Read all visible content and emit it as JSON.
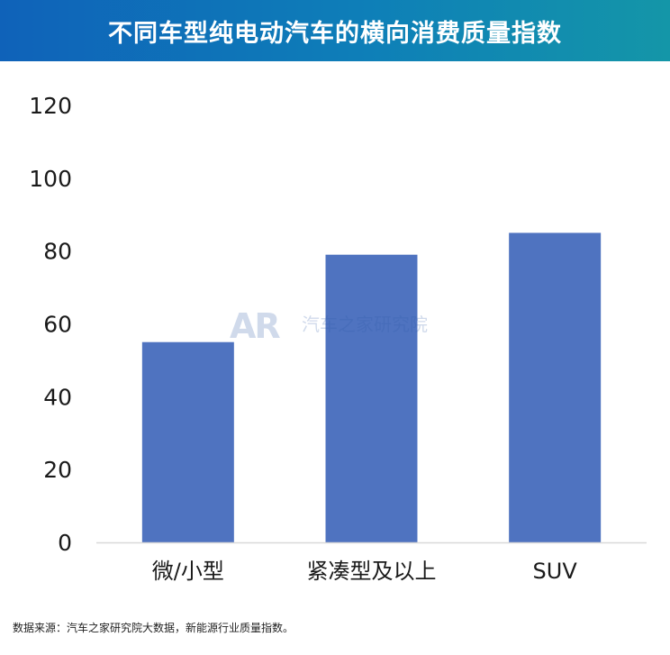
{
  "header": {
    "title": "不同车型纯电动汽车的横向消费质量指数"
  },
  "watermark": {
    "logo": "AR",
    "text": "汽车之家研究院"
  },
  "footer": {
    "source": "数据来源：汽车之家研究院大数据，新能源行业质量指数。"
  },
  "colors": {
    "bar": "#4f73c0",
    "axis": "#d9d9d9",
    "text": "#1a1a1a"
  },
  "chart_data": {
    "type": "bar",
    "title": "",
    "xlabel": "",
    "ylabel": "",
    "categories": [
      "微/小型",
      "紧凑型及以上",
      "SUV"
    ],
    "values": [
      55,
      79,
      85
    ],
    "ylim": [
      0,
      120
    ],
    "yticks": [
      0,
      20,
      40,
      60,
      80,
      100,
      120
    ],
    "grid": false,
    "legend": "none"
  }
}
